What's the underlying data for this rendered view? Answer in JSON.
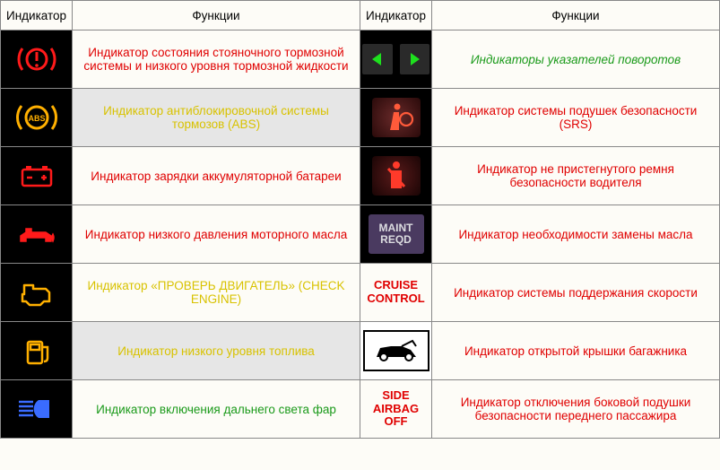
{
  "headers": {
    "indicator": "Индикатор",
    "functions": "Функции"
  },
  "rows": [
    {
      "left": {
        "desc": "Индикатор состояния стояночного тормозной системы и низкого уровня тормозной жидкости",
        "class": "desc-red"
      },
      "right": {
        "desc": "Индикаторы указателей поворотов",
        "class": "desc-green"
      }
    },
    {
      "left": {
        "desc": "Индикатор антиблокировочной системы тормозов (ABS)",
        "class": "desc-amber desc-hl"
      },
      "right": {
        "desc": "Индикатор системы подушек безопасности (SRS)",
        "class": "desc-red"
      }
    },
    {
      "left": {
        "desc": "Индикатор зарядки аккумуляторной батареи",
        "class": "desc-red"
      },
      "right": {
        "desc": "Индикатор не пристегнутого ремня безопасности водителя",
        "class": "desc-red"
      }
    },
    {
      "left": {
        "desc": "Индикатор низкого давления моторного масла",
        "class": "desc-red"
      },
      "right": {
        "desc": "Индикатор необходимости замены масла",
        "class": "desc-red"
      },
      "right_label": "MAINT\nREQD"
    },
    {
      "left": {
        "desc": "Индикатор «ПРОВЕРЬ ДВИГАТЕЛЬ» (CHECK ENGINE)",
        "class": "desc-amber"
      },
      "right": {
        "desc": "Индикатор системы поддержания скорости",
        "class": "desc-red"
      },
      "right_label": "CRUISE CONTROL"
    },
    {
      "left": {
        "desc": "Индикатор низкого уровня топлива",
        "class": "desc-amber desc-hl"
      },
      "right": {
        "desc": "Индикатор открытой крышки багажника",
        "class": "desc-red"
      }
    },
    {
      "left": {
        "desc": "Индикатор включения дальнего света фар",
        "class": "desc-green"
      },
      "right": {
        "desc": "Индикатор отключения боковой подушки безопасности переднего пассажира",
        "class": "desc-red"
      },
      "right_label": "SIDE AIRBAG OFF"
    }
  ],
  "colors": {
    "red": "#ff1a1a",
    "amber": "#ffb000",
    "green": "#1ee01e",
    "blue": "#3a6cff"
  }
}
